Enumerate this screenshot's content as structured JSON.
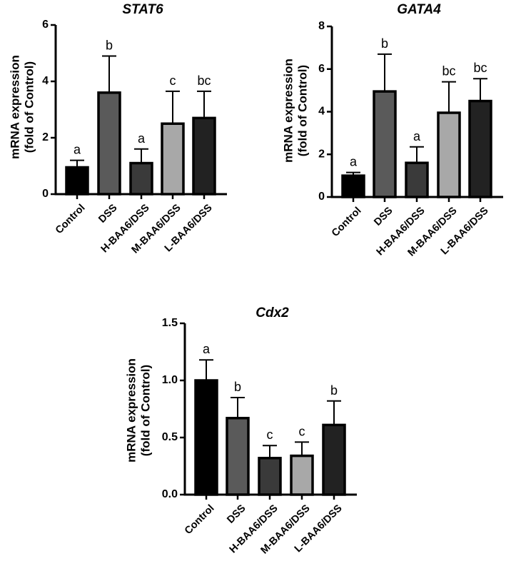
{
  "chart_data": [
    {
      "type": "bar",
      "title": "STAT6",
      "ylabel": [
        "mRNA expression",
        "(fold of Control)"
      ],
      "categories": [
        "Control",
        "DSS",
        "H-BAA6/DSS",
        "M-BAA6/DSS",
        "L-BAA6/DSS"
      ],
      "values": [
        0.95,
        3.6,
        1.1,
        2.5,
        2.7
      ],
      "error_upper": [
        1.2,
        4.9,
        1.6,
        3.65,
        3.65
      ],
      "significance": [
        "a",
        "b",
        "a",
        "c",
        "bc"
      ],
      "ylim": [
        0,
        6
      ],
      "yticks": [
        "0",
        "2",
        "4",
        "6"
      ],
      "ytick_values": [
        0,
        2,
        4,
        6
      ],
      "bar_colors": [
        "#000000",
        "#5a5a5a",
        "#3a3a3a",
        "#a8a8a8",
        "#222222"
      ],
      "grid": false
    },
    {
      "type": "bar",
      "title": "GATA4",
      "ylabel": [
        "mRNA expression",
        "(fold of Control)"
      ],
      "categories": [
        "Control",
        "DSS",
        "H-BAA6/DSS",
        "M-BAA6/DSS",
        "L-BAA6/DSS"
      ],
      "values": [
        1.0,
        4.95,
        1.6,
        3.95,
        4.5
      ],
      "error_upper": [
        1.15,
        6.7,
        2.35,
        5.4,
        5.55
      ],
      "significance": [
        "a",
        "b",
        "a",
        "bc",
        "bc"
      ],
      "ylim": [
        0,
        8
      ],
      "yticks": [
        "0",
        "2",
        "4",
        "6",
        "8"
      ],
      "ytick_values": [
        0,
        2,
        4,
        6,
        8
      ],
      "bar_colors": [
        "#000000",
        "#5a5a5a",
        "#3a3a3a",
        "#a8a8a8",
        "#222222"
      ],
      "grid": false
    },
    {
      "type": "bar",
      "title": "Cdx2",
      "ylabel": [
        "mRNA expression",
        "(fold of Control)"
      ],
      "categories": [
        "Control",
        "DSS",
        "H-BAA6/DSS",
        "M-BAA6/DSS",
        "L-BAA6/DSS"
      ],
      "values": [
        1.0,
        0.67,
        0.32,
        0.34,
        0.61
      ],
      "error_upper": [
        1.18,
        0.85,
        0.43,
        0.46,
        0.82
      ],
      "significance": [
        "a",
        "b",
        "c",
        "c",
        "b"
      ],
      "ylim": [
        0,
        1.5
      ],
      "yticks": [
        "0.0",
        "0.5",
        "1.0",
        "1.5"
      ],
      "ytick_values": [
        0,
        0.5,
        1.0,
        1.5
      ],
      "bar_colors": [
        "#000000",
        "#5a5a5a",
        "#3a3a3a",
        "#a8a8a8",
        "#222222"
      ],
      "grid": false
    }
  ]
}
